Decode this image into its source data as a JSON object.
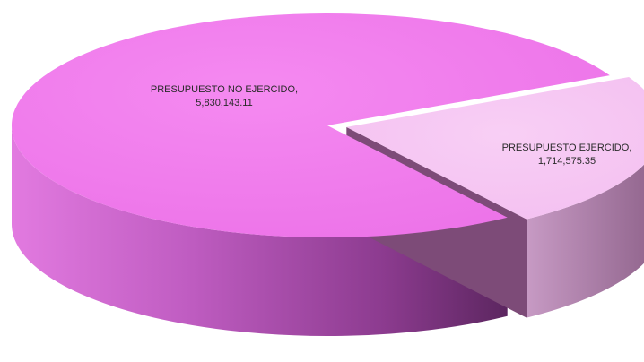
{
  "chart_data": {
    "type": "pie",
    "style": "3d-exploded",
    "title": "",
    "slices": [
      {
        "name": "PRESUPUESTO NO EJERCIDO",
        "value": 5830143.11,
        "label": "PRESUPUESTO NO EJERCIDO,",
        "value_label": "5,830,143.11",
        "color": "#EF7CEB"
      },
      {
        "name": "PRESUPUESTO EJERCIDO",
        "value": 1714575.35,
        "label": "PRESUPUESTO EJERCIDO,",
        "value_label": "1,714,575.35",
        "color": "#F6C6F3"
      }
    ]
  }
}
